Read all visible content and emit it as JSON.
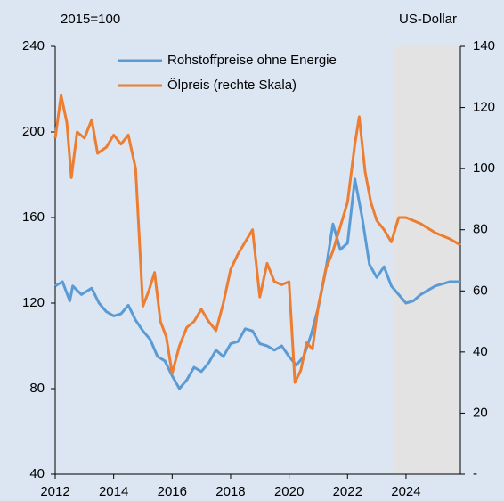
{
  "chart_data": {
    "type": "line",
    "y_label": "2015=100",
    "y2_label": "US-Dollar",
    "xlim": [
      2012,
      2025.86
    ],
    "xticks": [
      2012,
      2014,
      2016,
      2018,
      2020,
      2022,
      2024
    ],
    "ylim": [
      40,
      240
    ],
    "yticks": [
      40,
      80,
      120,
      160,
      200,
      240
    ],
    "y2lim": [
      0,
      140
    ],
    "y2ticks": [
      {
        "value": 0,
        "label": "-"
      },
      20,
      40,
      60,
      80,
      100,
      120,
      140
    ],
    "grid": false,
    "legend": "top",
    "shade": {
      "from": 2023.6,
      "to": 2025.86,
      "color": "#e3e3e3"
    },
    "series": [
      {
        "name": "Rohstoffpreise ohne Energie",
        "color": "#5b9bd5",
        "axis": "y",
        "x": [
          2012.0,
          2012.25,
          2012.5,
          2012.6,
          2012.9,
          2013.25,
          2013.5,
          2013.75,
          2014.0,
          2014.25,
          2014.5,
          2014.75,
          2015.0,
          2015.25,
          2015.5,
          2015.75,
          2016.0,
          2016.25,
          2016.5,
          2016.75,
          2017.0,
          2017.25,
          2017.5,
          2017.75,
          2018.0,
          2018.25,
          2018.5,
          2018.75,
          2019.0,
          2019.25,
          2019.5,
          2019.75,
          2020.0,
          2020.25,
          2020.5,
          2020.75,
          2021.0,
          2021.25,
          2021.5,
          2021.75,
          2022.0,
          2022.25,
          2022.5,
          2022.75,
          2023.0,
          2023.25,
          2023.5,
          2023.75,
          2024.0,
          2024.25,
          2024.5,
          2024.75,
          2025.0,
          2025.25,
          2025.5,
          2025.86
        ],
        "values": [
          128,
          130,
          121,
          128,
          124,
          127,
          120,
          116,
          114,
          115,
          119,
          112,
          107,
          103,
          95,
          93,
          86,
          80,
          84,
          90,
          88,
          92,
          98,
          95,
          101,
          102,
          108,
          107,
          101,
          100,
          98,
          100,
          95,
          91,
          95,
          105,
          118,
          135,
          157,
          145,
          148,
          178,
          160,
          138,
          132,
          137,
          128,
          124,
          120,
          121,
          124,
          126,
          128,
          129,
          130,
          130
        ]
      },
      {
        "name": "Ölpreis (rechte Skala)",
        "color": "#ed7d31",
        "axis": "y2",
        "x": [
          2012.0,
          2012.2,
          2012.4,
          2012.55,
          2012.75,
          2013.0,
          2013.25,
          2013.45,
          2013.75,
          2014.0,
          2014.25,
          2014.5,
          2014.75,
          2015.0,
          2015.2,
          2015.4,
          2015.6,
          2015.8,
          2016.0,
          2016.25,
          2016.5,
          2016.75,
          2017.0,
          2017.25,
          2017.5,
          2017.75,
          2018.0,
          2018.25,
          2018.5,
          2018.75,
          2019.0,
          2019.25,
          2019.5,
          2019.75,
          2020.0,
          2020.2,
          2020.4,
          2020.6,
          2020.8,
          2021.0,
          2021.25,
          2021.5,
          2021.75,
          2022.0,
          2022.25,
          2022.4,
          2022.6,
          2022.8,
          2023.0,
          2023.25,
          2023.5,
          2023.75,
          2024.0,
          2024.5,
          2025.0,
          2025.5,
          2025.86
        ],
        "values": [
          110,
          124,
          115,
          97,
          112,
          110,
          116,
          105,
          107,
          111,
          108,
          111,
          100,
          55,
          60,
          66,
          50,
          45,
          33,
          42,
          48,
          50,
          54,
          50,
          47,
          56,
          67,
          72,
          76,
          80,
          58,
          69,
          63,
          62,
          63,
          30,
          34,
          43,
          41,
          55,
          67,
          73,
          81,
          89,
          108,
          117,
          99,
          89,
          83,
          80,
          76,
          84,
          84,
          82,
          79,
          77,
          75
        ]
      }
    ]
  }
}
